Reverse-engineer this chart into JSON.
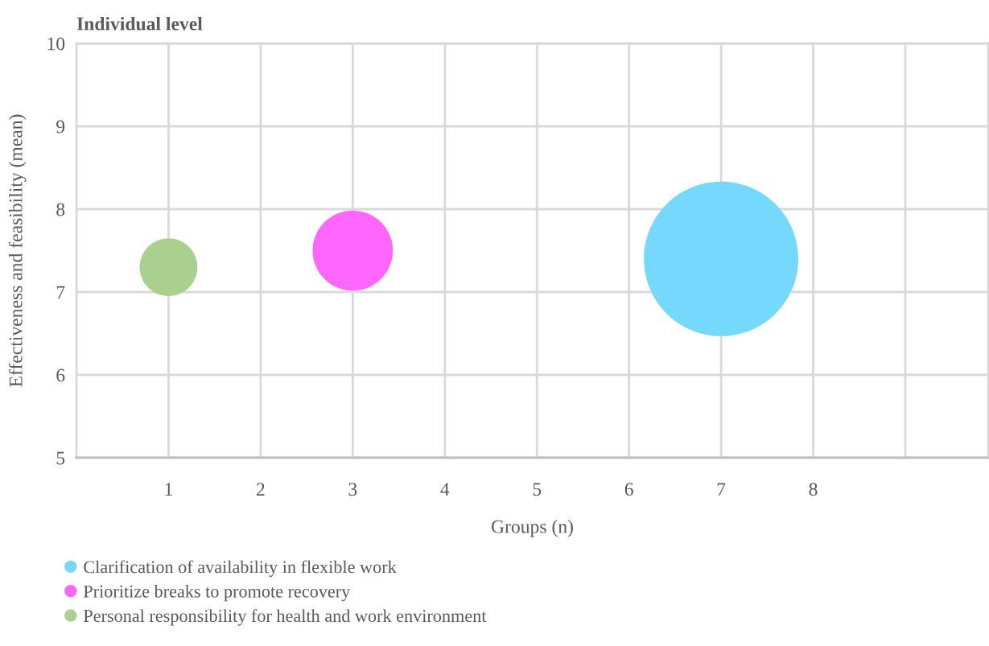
{
  "chart_data": {
    "type": "bubble",
    "title": "Individual level",
    "xlabel": "Groups (n)",
    "ylabel": "Effectiveness and feasibility (mean)",
    "xlim": [
      0,
      9.9
    ],
    "xticks": [
      1,
      2,
      3,
      4,
      5,
      6,
      7,
      8,
      {
        "value": 9,
        "label": null
      }
    ],
    "ylim": [
      5,
      10
    ],
    "yticks": [
      5,
      6,
      7,
      8,
      9,
      10
    ],
    "grid": true,
    "legend": "bottom",
    "series": [
      {
        "name": "Clarification of availability in flexible work",
        "color": "#75d9fe",
        "x": [
          7
        ],
        "values": [
          7.4
        ],
        "sizes": [
          1
        ]
      },
      {
        "name": "Prioritize breaks to promote recovery",
        "color": "#fe66fe",
        "x": [
          3
        ],
        "values": [
          7.5
        ],
        "sizes": [
          0.27
        ]
      },
      {
        "name": "Personal responsibility for health and work environment",
        "color": "#a9d08e",
        "x": [
          1
        ],
        "values": [
          7.3
        ],
        "sizes": [
          0.14
        ]
      }
    ]
  }
}
